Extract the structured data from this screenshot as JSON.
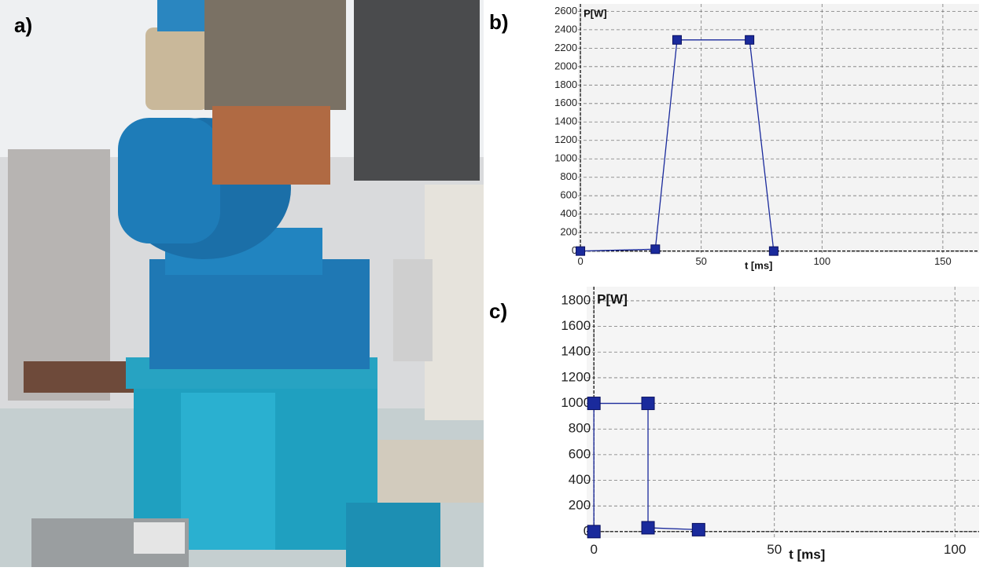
{
  "panel_labels": [
    "a)",
    "b)",
    "c)"
  ],
  "chart_data": [
    {
      "type": "line",
      "xlabel": "t [ms]",
      "ylabel": "P[W]",
      "x": [
        0,
        31,
        40,
        70,
        80
      ],
      "series": [
        {
          "color": "#1a2a9c",
          "values": [
            0,
            20,
            2290,
            2290,
            0
          ]
        }
      ],
      "xlim": [
        -1,
        165
      ],
      "ylim": [
        -20,
        2680
      ],
      "xticks": [
        0,
        50,
        100,
        150
      ],
      "yticks": [
        0,
        200,
        400,
        600,
        800,
        1000,
        1200,
        1400,
        1600,
        1800,
        2000,
        2200,
        2400,
        2600
      ],
      "grid": true
    },
    {
      "type": "line",
      "xlabel": "t [ms]",
      "ylabel": "P[W]",
      "x": [
        0,
        0,
        15,
        15,
        29
      ],
      "series": [
        {
          "color": "#1a2a9c",
          "values": [
            0,
            1000,
            1000,
            30,
            15
          ]
        }
      ],
      "xlim": [
        -2,
        106.7
      ],
      "ylim": [
        -50,
        1910
      ],
      "xticks": [
        0,
        50,
        100
      ],
      "yticks": [
        0,
        200,
        400,
        600,
        800,
        1000,
        1200,
        1400,
        1600,
        1800
      ],
      "grid": true
    }
  ]
}
